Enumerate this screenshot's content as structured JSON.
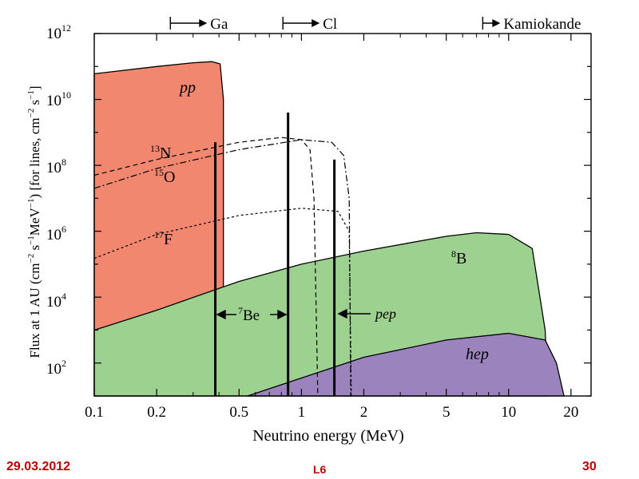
{
  "colors": {
    "pp": "#f2876f",
    "boron8": "#9dd18f",
    "hep": "#9b84bd",
    "line": "#000000",
    "footer": "#c00000"
  },
  "chart_data": {
    "type": "area",
    "xlabel": "Neutrino energy (MeV)",
    "ylabel_parts": {
      "a": "Flux at 1 AU (cm",
      "a_sup": "−2",
      "b": " s",
      "b_sup": "−1",
      "c": "MeV",
      "c_sup": "−1",
      "d": ") [for lines, cm",
      "d_sup": "−2",
      "e": " s",
      "e_sup": "−1",
      "f": "]"
    },
    "x_scale": "log",
    "y_scale": "log",
    "xlim": [
      0.1,
      25
    ],
    "ylim": [
      10,
      1000000000000.0
    ],
    "x_ticks": [
      {
        "value": 0.1,
        "label": "0.1"
      },
      {
        "value": 0.2,
        "label": "0.2"
      },
      {
        "value": 0.5,
        "label": "0.5"
      },
      {
        "value": 1,
        "label": "1"
      },
      {
        "value": 2,
        "label": "2"
      },
      {
        "value": 5,
        "label": "5"
      },
      {
        "value": 10,
        "label": "10"
      },
      {
        "value": 20,
        "label": "20"
      }
    ],
    "y_ticks": [
      {
        "exp": 2,
        "base": "10",
        "sup": "2"
      },
      {
        "exp": 4,
        "base": "10",
        "sup": "4"
      },
      {
        "exp": 6,
        "base": "10",
        "sup": "6"
      },
      {
        "exp": 8,
        "base": "10",
        "sup": "8"
      },
      {
        "exp": 10,
        "base": "10",
        "sup": "10"
      },
      {
        "exp": 12,
        "base": "10",
        "sup": "12"
      }
    ],
    "continuum_series": [
      {
        "name": "pp",
        "label": "pp",
        "color_key": "pp",
        "points": [
          [
            0.1,
            60000000000.0
          ],
          [
            0.2,
            100000000000.0
          ],
          [
            0.3,
            130000000000.0
          ],
          [
            0.37,
            140000000000.0
          ],
          [
            0.405,
            120000000000.0
          ],
          [
            0.42,
            10000000000.0
          ],
          [
            0.42,
            10
          ]
        ]
      },
      {
        "name": "8B",
        "label_base": "8",
        "label_rest": "B",
        "color_key": "boron8",
        "points": [
          [
            0.1,
            1000
          ],
          [
            0.2,
            4000
          ],
          [
            0.5,
            30000
          ],
          [
            1,
            100000
          ],
          [
            2,
            250000
          ],
          [
            5,
            700000
          ],
          [
            7,
            900000
          ],
          [
            10,
            800000
          ],
          [
            13,
            300000
          ],
          [
            15,
            1000
          ],
          [
            15.5,
            10
          ]
        ]
      },
      {
        "name": "hep",
        "label": "hep",
        "color_key": "hep",
        "points": [
          [
            0.55,
            10
          ],
          [
            1,
            35
          ],
          [
            2,
            150
          ],
          [
            5,
            500
          ],
          [
            10,
            800
          ],
          [
            15,
            500
          ],
          [
            17,
            100
          ],
          [
            18.5,
            10
          ]
        ]
      }
    ],
    "dashed_series": [
      {
        "name": "13N",
        "label_base": "13",
        "label_rest": "N",
        "style": "dash",
        "points": [
          [
            0.1,
            50000000.0
          ],
          [
            0.2,
            150000000.0
          ],
          [
            0.5,
            500000000.0
          ],
          [
            0.8,
            700000000.0
          ],
          [
            1,
            600000000.0
          ],
          [
            1.1,
            300000000.0
          ],
          [
            1.15,
            10000000.0
          ],
          [
            1.2,
            10
          ]
        ]
      },
      {
        "name": "15O",
        "label_base": "15",
        "label_rest": "O",
        "style": "dashdot",
        "points": [
          [
            0.1,
            20000000.0
          ],
          [
            0.2,
            80000000.0
          ],
          [
            0.5,
            300000000.0
          ],
          [
            1,
            600000000.0
          ],
          [
            1.4,
            500000000.0
          ],
          [
            1.6,
            200000000.0
          ],
          [
            1.7,
            10000000.0
          ],
          [
            1.73,
            10
          ]
        ]
      },
      {
        "name": "17F",
        "label_base": "17",
        "label_rest": "F",
        "style": "dot",
        "points": [
          [
            0.1,
            150000.0
          ],
          [
            0.2,
            800000.0
          ],
          [
            0.5,
            3000000.0
          ],
          [
            1,
            5000000.0
          ],
          [
            1.5,
            4000000.0
          ],
          [
            1.7,
            1000000.0
          ],
          [
            1.74,
            10
          ]
        ]
      }
    ],
    "lines": [
      {
        "name": "7Be-0.38",
        "energy": 0.384,
        "flux": 500000000.0
      },
      {
        "name": "7Be-0.86",
        "energy": 0.862,
        "flux": 4000000000.0
      },
      {
        "name": "pep",
        "energy": 1.442,
        "flux": 150000000.0
      }
    ],
    "line_labels": {
      "be7": {
        "base": "7",
        "rest": "Be"
      },
      "pep": "pep"
    },
    "thresholds": [
      {
        "name": "Ga",
        "label": "Ga",
        "energy": 0.233
      },
      {
        "name": "Cl",
        "label": "Cl",
        "energy": 0.814
      },
      {
        "name": "Kamiokande",
        "label": "Kamiokande",
        "energy": 7.5
      }
    ]
  },
  "footer": {
    "date": "29.03.2012",
    "lecture": "L6",
    "page": "30"
  }
}
